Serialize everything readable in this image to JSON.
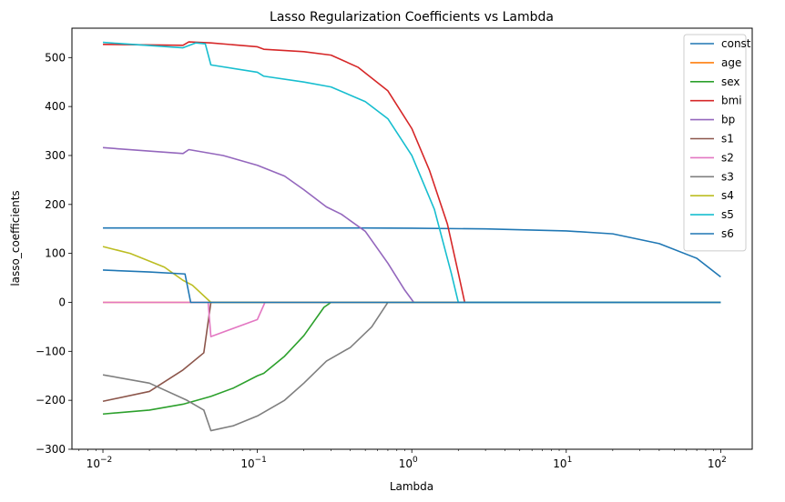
{
  "chart_data": {
    "type": "line",
    "title": "Lasso Regularization Coefficients vs Lambda",
    "xlabel": "Lambda",
    "ylabel": "lasso_coefficients",
    "x_scale": "log",
    "xlim": [
      0.0063,
      160
    ],
    "ylim": [
      -300,
      560
    ],
    "x_ticks": [
      {
        "value": 0.01,
        "base": "10",
        "exp": "−2"
      },
      {
        "value": 0.1,
        "base": "10",
        "exp": "−1"
      },
      {
        "value": 1,
        "base": "10",
        "exp": "0"
      },
      {
        "value": 10,
        "base": "10",
        "exp": "1"
      },
      {
        "value": 100,
        "base": "10",
        "exp": "2"
      }
    ],
    "y_ticks": [
      {
        "value": 500,
        "label": "500"
      },
      {
        "value": 400,
        "label": "400"
      },
      {
        "value": 300,
        "label": "300"
      },
      {
        "value": 200,
        "label": "200"
      },
      {
        "value": 100,
        "label": "100"
      },
      {
        "value": 0,
        "label": "0"
      },
      {
        "value": -100,
        "label": "−100"
      },
      {
        "value": -200,
        "label": "−200"
      },
      {
        "value": -300,
        "label": "−300"
      }
    ],
    "grid": false,
    "legend_position": "top-right",
    "series": [
      {
        "name": "const",
        "color": "#1f77b4",
        "points": [
          [
            0.01,
            152
          ],
          [
            0.1,
            152
          ],
          [
            0.5,
            151.9
          ],
          [
            1,
            151.5
          ],
          [
            3,
            150
          ],
          [
            10,
            146
          ],
          [
            20,
            140
          ],
          [
            40,
            120
          ],
          [
            70,
            90
          ],
          [
            100,
            52
          ]
        ]
      },
      {
        "name": "age",
        "color": "#ff7f0e",
        "points": [
          [
            0.01,
            0
          ],
          [
            100,
            0
          ]
        ]
      },
      {
        "name": "sex",
        "color": "#2ca02c",
        "points": [
          [
            0.01,
            -228
          ],
          [
            0.02,
            -220
          ],
          [
            0.033,
            -208
          ],
          [
            0.05,
            -192
          ],
          [
            0.07,
            -175
          ],
          [
            0.1,
            -150
          ],
          [
            0.11,
            -145
          ],
          [
            0.15,
            -110
          ],
          [
            0.2,
            -68
          ],
          [
            0.27,
            -10
          ],
          [
            0.3,
            0
          ],
          [
            100,
            0
          ]
        ]
      },
      {
        "name": "bmi",
        "color": "#d62728",
        "points": [
          [
            0.01,
            527
          ],
          [
            0.033,
            525
          ],
          [
            0.036,
            532
          ],
          [
            0.05,
            530
          ],
          [
            0.1,
            522
          ],
          [
            0.11,
            517
          ],
          [
            0.2,
            512
          ],
          [
            0.3,
            505
          ],
          [
            0.45,
            480
          ],
          [
            0.7,
            432
          ],
          [
            1,
            355
          ],
          [
            1.3,
            270
          ],
          [
            1.7,
            160
          ],
          [
            2,
            60
          ],
          [
            2.2,
            0
          ],
          [
            100,
            0
          ]
        ]
      },
      {
        "name": "bp",
        "color": "#9467bd",
        "points": [
          [
            0.01,
            316
          ],
          [
            0.033,
            304
          ],
          [
            0.036,
            312
          ],
          [
            0.06,
            300
          ],
          [
            0.1,
            280
          ],
          [
            0.15,
            258
          ],
          [
            0.2,
            230
          ],
          [
            0.28,
            195
          ],
          [
            0.35,
            180
          ],
          [
            0.5,
            145
          ],
          [
            0.7,
            80
          ],
          [
            0.9,
            25
          ],
          [
            1.03,
            0
          ],
          [
            100,
            0
          ]
        ]
      },
      {
        "name": "s1",
        "color": "#8c564b",
        "points": [
          [
            0.01,
            -202
          ],
          [
            0.02,
            -182
          ],
          [
            0.033,
            -138
          ],
          [
            0.045,
            -103
          ],
          [
            0.05,
            0
          ],
          [
            100,
            0
          ]
        ]
      },
      {
        "name": "s2",
        "color": "#e377c2",
        "points": [
          [
            0.01,
            0
          ],
          [
            0.048,
            0
          ],
          [
            0.05,
            -70
          ],
          [
            0.1,
            -35
          ],
          [
            0.112,
            0
          ],
          [
            100,
            0
          ]
        ]
      },
      {
        "name": "s3",
        "color": "#7f7f7f",
        "points": [
          [
            0.01,
            -148
          ],
          [
            0.02,
            -165
          ],
          [
            0.035,
            -200
          ],
          [
            0.045,
            -220
          ],
          [
            0.05,
            -262
          ],
          [
            0.07,
            -252
          ],
          [
            0.1,
            -232
          ],
          [
            0.15,
            -200
          ],
          [
            0.2,
            -165
          ],
          [
            0.28,
            -120
          ],
          [
            0.4,
            -92
          ],
          [
            0.55,
            -50
          ],
          [
            0.7,
            0
          ],
          [
            100,
            0
          ]
        ]
      },
      {
        "name": "s4",
        "color": "#bcbd22",
        "points": [
          [
            0.01,
            114
          ],
          [
            0.015,
            100
          ],
          [
            0.025,
            72
          ],
          [
            0.033,
            45
          ],
          [
            0.038,
            35
          ],
          [
            0.05,
            0
          ],
          [
            100,
            0
          ]
        ]
      },
      {
        "name": "s5",
        "color": "#17becf",
        "points": [
          [
            0.01,
            531
          ],
          [
            0.033,
            520
          ],
          [
            0.04,
            530
          ],
          [
            0.046,
            528
          ],
          [
            0.05,
            485
          ],
          [
            0.1,
            470
          ],
          [
            0.11,
            462
          ],
          [
            0.2,
            450
          ],
          [
            0.3,
            440
          ],
          [
            0.5,
            410
          ],
          [
            0.7,
            375
          ],
          [
            1,
            300
          ],
          [
            1.4,
            190
          ],
          [
            1.8,
            60
          ],
          [
            2,
            0
          ],
          [
            100,
            0
          ]
        ]
      },
      {
        "name": "s6",
        "color": "#1f77b4",
        "points": [
          [
            0.01,
            66
          ],
          [
            0.02,
            62
          ],
          [
            0.034,
            58
          ],
          [
            0.037,
            0
          ],
          [
            100,
            0
          ]
        ]
      }
    ]
  }
}
